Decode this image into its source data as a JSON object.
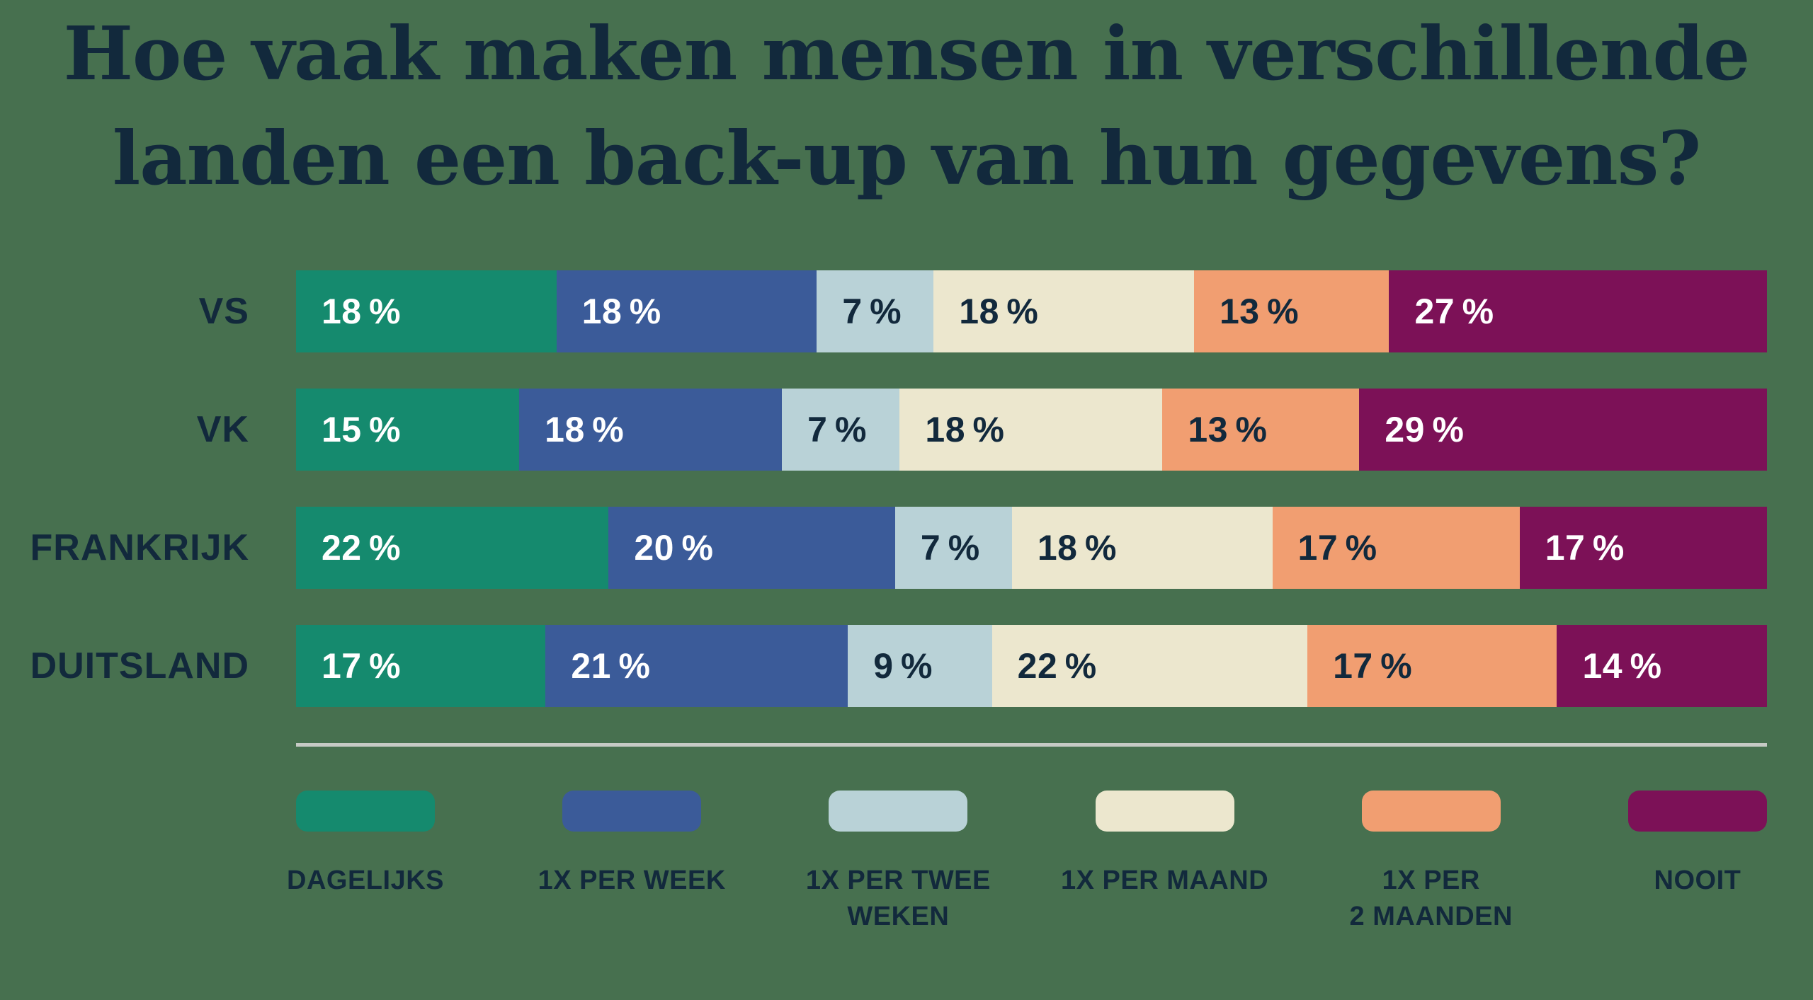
{
  "title": {
    "line1": "Hoe vaak maken mensen in verschillende",
    "line2": "landen een back-up van hun gegevens?"
  },
  "colors": {
    "background": "#47704f",
    "text_dark": "#12293c",
    "text_light": "#ffffff",
    "divider": "#c6cac5"
  },
  "chart_data": {
    "type": "bar",
    "orientation": "horizontal",
    "stacked": true,
    "unit": "percent",
    "value_suffix": "%",
    "title": "Hoe vaak maken mensen in verschillende landen een back-up van hun gegevens?",
    "legend_position": "bottom",
    "grid": false,
    "categories": [
      "VS",
      "VK",
      "FRANKRIJK",
      "DUITSLAND"
    ],
    "series": [
      {
        "name": "DAGELIJKS",
        "legend_lines": [
          "DAGELIJKS"
        ],
        "color": "#158a6e",
        "text_color": "#ffffff",
        "values": [
          18,
          15,
          22,
          17
        ]
      },
      {
        "name": "1X PER WEEK",
        "legend_lines": [
          "1X PER WEEK"
        ],
        "color": "#3b5b99",
        "text_color": "#ffffff",
        "values": [
          18,
          18,
          20,
          21
        ]
      },
      {
        "name": "1X PER TWEE WEKEN",
        "legend_lines": [
          "1X PER TWEE",
          "WEKEN"
        ],
        "color": "#b9d2d7",
        "text_color": "#12293c",
        "values": [
          7,
          7,
          7,
          9
        ]
      },
      {
        "name": "1X PER MAAND",
        "legend_lines": [
          "1X PER MAAND"
        ],
        "color": "#ece7ce",
        "text_color": "#12293c",
        "values": [
          18,
          18,
          18,
          22
        ]
      },
      {
        "name": "1X PER 2 MAANDEN",
        "legend_lines": [
          "1X PER",
          "2 MAANDEN"
        ],
        "color": "#f19e71",
        "text_color": "#12293c",
        "values": [
          13,
          13,
          17,
          17
        ]
      },
      {
        "name": "NOOIT",
        "legend_lines": [
          "NOOIT"
        ],
        "color": "#7c1157",
        "text_color": "#ffffff",
        "values": [
          27,
          29,
          17,
          14
        ]
      }
    ]
  }
}
